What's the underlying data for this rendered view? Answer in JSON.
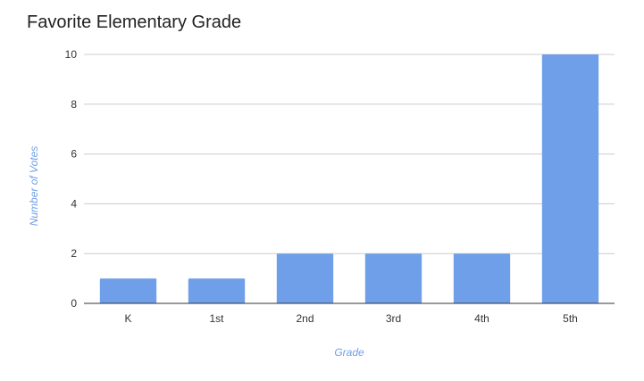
{
  "chart_data": {
    "type": "bar",
    "title": "Favorite Elementary Grade",
    "xlabel": "Grade",
    "ylabel": "Number of Votes",
    "categories": [
      "K",
      "1st",
      "2nd",
      "3rd",
      "4th",
      "5th"
    ],
    "series": [
      {
        "values": [
          1,
          1,
          2,
          2,
          2,
          10
        ]
      }
    ],
    "ylim": [
      0,
      10
    ],
    "yticks": [
      "0",
      "2",
      "4",
      "6",
      "8",
      "10"
    ],
    "grid": true,
    "legend": "none"
  },
  "colors": {
    "bar": "#6f9fe8",
    "grid": "#cccccc",
    "axis": "#333333",
    "axis_title": "#6f9fe8"
  }
}
